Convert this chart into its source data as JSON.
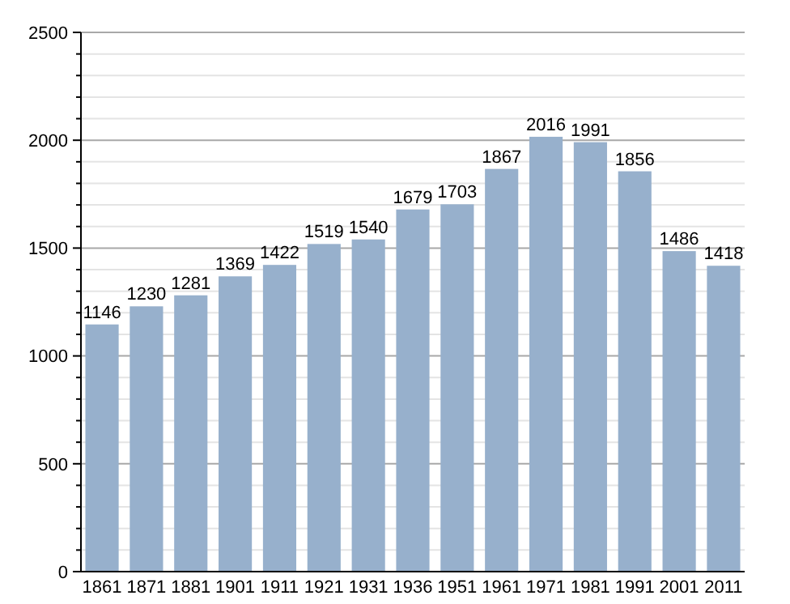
{
  "chart_data": {
    "type": "bar",
    "categories": [
      "1861",
      "1871",
      "1881",
      "1901",
      "1911",
      "1921",
      "1931",
      "1936",
      "1951",
      "1961",
      "1971",
      "1981",
      "1991",
      "2001",
      "2011"
    ],
    "values": [
      1146,
      1230,
      1281,
      1369,
      1422,
      1519,
      1540,
      1679,
      1703,
      1867,
      2016,
      1991,
      1856,
      1486,
      1418
    ],
    "color": "#97b0cc",
    "data_labels": true,
    "grid": "y",
    "ylim": [
      0,
      2500
    ],
    "yticks": [
      0,
      {
        "value": 100,
        "label": null
      },
      {
        "value": 200,
        "label": null
      },
      {
        "value": 300,
        "label": null
      },
      {
        "value": 400,
        "label": null
      },
      500,
      {
        "value": 600,
        "label": null
      },
      {
        "value": 700,
        "label": null
      },
      {
        "value": 800,
        "label": null
      },
      {
        "value": 900,
        "label": null
      },
      1000,
      {
        "value": 1100,
        "label": null
      },
      {
        "value": 1200,
        "label": null
      },
      {
        "value": 1300,
        "label": null
      },
      {
        "value": 1400,
        "label": null
      },
      1500,
      {
        "value": 1600,
        "label": null
      },
      {
        "value": 1700,
        "label": null
      },
      {
        "value": 1800,
        "label": null
      },
      {
        "value": 1900,
        "label": null
      },
      2000,
      {
        "value": 2100,
        "label": null
      },
      {
        "value": 2200,
        "label": null
      },
      {
        "value": 2300,
        "label": null
      },
      {
        "value": 2400,
        "label": null
      },
      2500
    ]
  }
}
